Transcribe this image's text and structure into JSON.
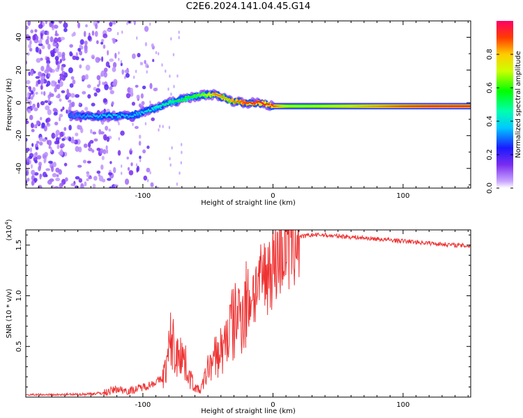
{
  "title": "C2E6.2024.141.04.45.G14",
  "colors": {
    "snr_line": "#ee3333",
    "axis": "#000000"
  },
  "chart_data": [
    {
      "type": "heatmap",
      "xlabel": "Height of straight line (km)",
      "ylabel": "Frequency (Hz)",
      "xlim": [
        -190,
        152
      ],
      "ylim": [
        -52,
        50
      ],
      "x_ticks": [
        -100,
        0,
        100
      ],
      "x_tick_labels": [
        "-100",
        "0",
        "100"
      ],
      "y_ticks": [
        40,
        20,
        0,
        -20,
        -40
      ],
      "y_tick_labels": [
        "40",
        "20",
        "0",
        "-20",
        "-40"
      ],
      "grid": false,
      "colorbar": {
        "label": "Normalized spectral amplitude",
        "range": [
          0,
          1
        ],
        "ticks": [
          0.0,
          0.2,
          0.4,
          0.6,
          0.8
        ],
        "tick_labels": [
          "0.0",
          "0.2",
          "0.4",
          "0.6",
          "0.8"
        ],
        "colormap": "rainbow (violet-blue-cyan-green-yellow-red)"
      },
      "ridge_x": [
        -155,
        -140,
        -125,
        -110,
        -100,
        -90,
        -80,
        -70,
        -60,
        -50,
        -45,
        -40,
        -35,
        -30,
        -20,
        -10,
        0,
        10,
        20,
        40,
        60,
        80,
        100,
        120,
        150
      ],
      "ridge_freq": [
        -8,
        -8,
        -8,
        -8,
        -6,
        -3,
        0,
        2,
        4,
        5,
        5,
        4,
        2,
        1,
        0,
        0,
        -2,
        -2,
        -2,
        -2,
        -2,
        -2,
        -2,
        -2,
        -2
      ],
      "ridge_amp": [
        0.3,
        0.35,
        0.4,
        0.35,
        0.4,
        0.45,
        0.5,
        0.55,
        0.6,
        0.7,
        0.85,
        0.85,
        0.8,
        0.85,
        0.9,
        0.95,
        0.9,
        0.75,
        0.7,
        0.75,
        0.8,
        0.85,
        0.9,
        0.95,
        0.95
      ]
    },
    {
      "type": "line",
      "xlabel": "Height of straight line (km)",
      "ylabel": "SNR (10 * v/v)",
      "y_multiplier_label": "(x10",
      "y_multiplier_exp": "4",
      "xlim": [
        -190,
        152
      ],
      "ylim": [
        0,
        16500
      ],
      "x_ticks": [
        -100,
        0,
        100
      ],
      "x_tick_labels": [
        "-100",
        "0",
        "100"
      ],
      "y_ticks": [
        5000,
        10000,
        15000
      ],
      "y_tick_labels": [
        "0.5",
        "1.0",
        "1.5"
      ],
      "grid": false,
      "series": [
        {
          "x": [
            -190,
            -170,
            -150,
            -130,
            -120,
            -110,
            -100,
            -95,
            -90,
            -85,
            -82,
            -80,
            -78,
            -76,
            -74,
            -72,
            -70,
            -68,
            -66,
            -64,
            -62,
            -60,
            -58,
            -56,
            -54,
            -52,
            -50,
            -48,
            -46,
            -44,
            -42,
            -40,
            -38,
            -36,
            -34,
            -32,
            -30,
            -28,
            -26,
            -24,
            -22,
            -20,
            -18,
            -16,
            -14,
            -12,
            -10,
            -8,
            -6,
            -4,
            -2,
            0,
            2,
            4,
            6,
            8,
            10,
            12,
            14,
            16,
            18,
            20,
            25,
            30,
            35,
            40,
            45,
            50,
            60,
            70,
            80,
            90,
            100,
            110,
            120,
            130,
            140,
            152
          ],
          "y": [
            200,
            200,
            250,
            400,
            800,
            600,
            1000,
            1200,
            1500,
            1800,
            3000,
            4500,
            6000,
            4800,
            3600,
            5500,
            4200,
            3500,
            2800,
            2000,
            1500,
            1000,
            800,
            600,
            1200,
            2000,
            2800,
            3500,
            3000,
            4500,
            3800,
            5000,
            4200,
            6500,
            5800,
            7500,
            6800,
            8500,
            7800,
            9000,
            8500,
            10000,
            9200,
            10800,
            10000,
            11500,
            10800,
            12000,
            11800,
            12500,
            12800,
            13200,
            13600,
            14000,
            14500,
            14800,
            15000,
            15200,
            15500,
            15600,
            15700,
            15800,
            15900,
            16000,
            16000,
            16000,
            15900,
            15900,
            15800,
            15700,
            15600,
            15500,
            15400,
            15300,
            15200,
            15100,
            15000,
            14900
          ]
        }
      ]
    }
  ]
}
